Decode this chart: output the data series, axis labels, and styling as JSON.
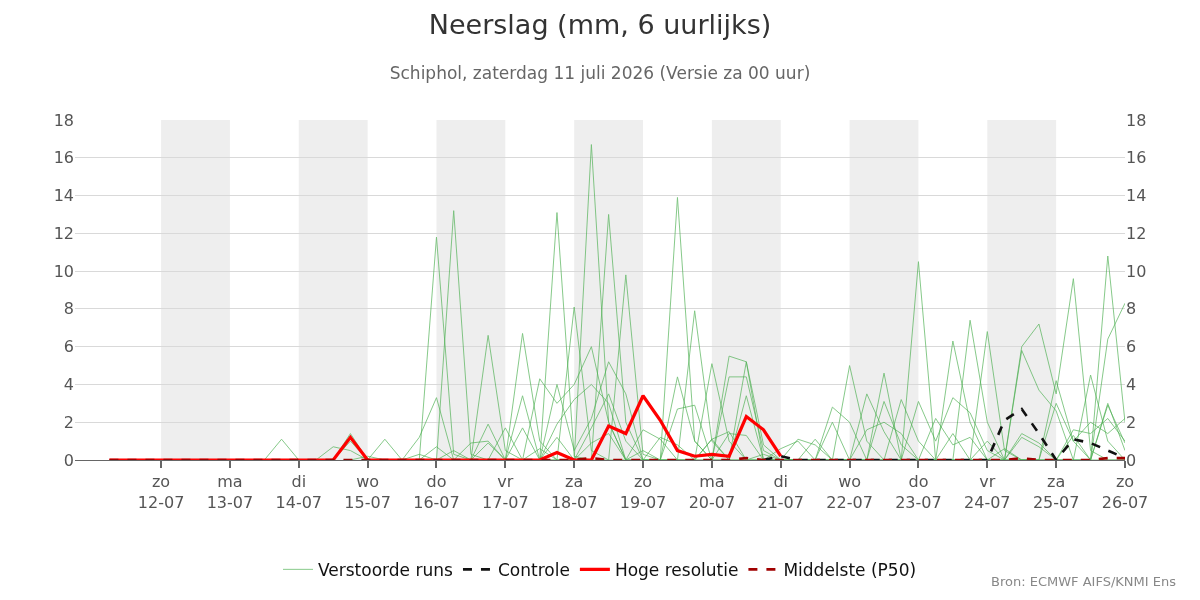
{
  "chart_data": {
    "type": "line",
    "title": "Neerslag (mm, 6 uurlijks)",
    "subtitle": "Schiphol, zaterdag 11 juli 2026 (Versie za 00 uur)",
    "annotations": [
      "Bron: ECMWF AIFS/KNMI Ens"
    ],
    "x": [
      "2026-07-11T06:00",
      "2026-07-11T12:00",
      "2026-07-11T18:00",
      "2026-07-12T00:00",
      "2026-07-12T06:00",
      "2026-07-12T12:00",
      "2026-07-12T18:00",
      "2026-07-13T00:00",
      "2026-07-13T06:00",
      "2026-07-13T12:00",
      "2026-07-13T18:00",
      "2026-07-14T00:00",
      "2026-07-14T06:00",
      "2026-07-14T12:00",
      "2026-07-14T18:00",
      "2026-07-15T00:00",
      "2026-07-15T06:00",
      "2026-07-15T12:00",
      "2026-07-15T18:00",
      "2026-07-16T00:00",
      "2026-07-16T06:00",
      "2026-07-16T12:00",
      "2026-07-16T18:00",
      "2026-07-17T00:00",
      "2026-07-17T06:00",
      "2026-07-17T12:00",
      "2026-07-17T18:00",
      "2026-07-18T00:00",
      "2026-07-18T06:00",
      "2026-07-18T12:00",
      "2026-07-18T18:00",
      "2026-07-19T00:00",
      "2026-07-19T06:00",
      "2026-07-19T12:00",
      "2026-07-19T18:00",
      "2026-07-20T00:00",
      "2026-07-20T06:00",
      "2026-07-20T12:00",
      "2026-07-20T18:00",
      "2026-07-21T00:00",
      "2026-07-21T06:00",
      "2026-07-21T12:00",
      "2026-07-21T18:00",
      "2026-07-22T00:00",
      "2026-07-22T06:00",
      "2026-07-22T12:00",
      "2026-07-22T18:00",
      "2026-07-23T00:00",
      "2026-07-23T06:00",
      "2026-07-23T12:00",
      "2026-07-23T18:00",
      "2026-07-24T00:00",
      "2026-07-24T06:00",
      "2026-07-24T12:00",
      "2026-07-24T18:00",
      "2026-07-25T00:00",
      "2026-07-25T06:00",
      "2026-07-25T12:00",
      "2026-07-25T18:00",
      "2026-07-26T00:00"
    ],
    "series": [
      {
        "name": "Verstoorde runs",
        "color": "#4caf50",
        "line_style": "solid",
        "values": [
          null,
          null,
          null,
          null,
          null,
          null,
          null,
          null,
          null,
          0,
          1.1,
          0,
          0,
          0,
          1.4,
          0,
          0,
          0,
          0,
          11.8,
          0.3,
          0,
          0,
          0,
          0,
          0,
          13.1,
          0.2,
          0,
          0,
          0,
          0,
          0,
          13.9,
          1.0,
          0,
          0,
          0,
          0,
          0,
          0,
          0,
          0,
          0,
          0,
          0,
          0,
          10.5,
          0,
          0,
          0,
          0,
          0,
          0,
          0,
          0,
          0,
          0,
          10.8,
          2.0
        ]
      },
      {
        "color": "#4caf50",
        "line_style": "solid",
        "values": [
          null,
          null,
          null,
          null,
          null,
          null,
          null,
          null,
          null,
          null,
          null,
          null,
          null,
          0,
          1.0,
          0,
          0,
          0,
          0,
          0,
          13.2,
          0.3,
          0,
          0,
          0,
          0,
          0,
          0,
          16.7,
          2.0,
          0,
          0,
          0,
          0,
          0,
          0,
          0,
          5.2,
          0,
          0,
          0,
          0,
          0,
          5.0,
          1.0,
          0,
          0,
          0,
          0,
          0,
          0,
          0,
          0,
          6.0,
          7.2,
          3.5,
          9.6,
          0.5,
          0,
          0
        ]
      },
      {
        "color": "#4caf50",
        "line_style": "solid",
        "values": [
          null,
          null,
          null,
          null,
          null,
          null,
          null,
          null,
          null,
          null,
          null,
          null,
          null,
          null,
          null,
          0,
          1.1,
          0,
          0,
          0,
          0,
          0,
          6.6,
          0.5,
          0,
          0,
          0,
          0,
          0,
          13.0,
          2.0,
          0,
          0,
          0,
          7.9,
          1.0,
          0,
          0,
          0,
          0,
          0,
          0,
          0,
          0,
          0,
          4.6,
          0,
          0,
          0,
          6.3,
          2.0,
          0,
          0,
          0,
          0,
          0,
          0,
          0,
          6.4,
          8.3
        ]
      },
      {
        "color": "#4caf50",
        "line_style": "solid",
        "values": [
          null,
          null,
          null,
          null,
          null,
          null,
          null,
          null,
          null,
          null,
          null,
          null,
          null,
          null,
          null,
          null,
          null,
          0,
          1.2,
          3.3,
          0,
          0,
          0,
          0,
          6.7,
          1.0,
          0,
          8.1,
          0.5,
          0,
          9.8,
          0.3,
          0,
          0,
          0,
          0,
          5.5,
          5.2,
          0.8,
          0,
          0,
          0,
          0,
          0,
          0,
          0,
          0,
          0,
          0,
          0,
          7.4,
          2.0,
          0,
          0,
          0,
          0,
          0,
          4.5,
          1.0,
          0
        ]
      },
      {
        "color": "#4caf50",
        "line_style": "solid",
        "values": [
          null,
          null,
          null,
          null,
          null,
          null,
          null,
          null,
          null,
          null,
          null,
          null,
          null,
          0,
          1.2,
          0,
          0,
          0,
          0,
          0,
          0,
          0,
          0,
          0,
          0,
          4.3,
          3.0,
          4.0,
          6.0,
          2.0,
          0,
          0,
          0,
          0,
          0,
          5.1,
          1.0,
          0,
          0,
          0,
          0,
          0,
          2.8,
          2.0,
          0,
          0,
          0,
          0,
          0,
          0,
          0,
          6.8,
          0.5,
          0,
          0,
          4.2,
          1.0,
          0,
          0,
          0
        ]
      },
      {
        "color": "#4caf50",
        "line_style": "solid",
        "values": [
          null,
          null,
          null,
          null,
          null,
          null,
          null,
          null,
          null,
          null,
          null,
          null,
          null,
          null,
          null,
          null,
          null,
          null,
          null,
          null,
          null,
          0,
          1.9,
          0,
          3.4,
          0,
          4.0,
          0.5,
          2.2,
          5.2,
          3.5,
          0,
          0,
          4.4,
          1.0,
          0,
          4.4,
          4.4,
          0.5,
          0,
          0,
          0,
          0,
          0,
          0,
          0,
          3.2,
          1.0,
          0,
          0,
          0,
          0,
          0,
          5.8,
          3.7,
          2.6,
          0,
          0,
          2.9,
          0.9
        ]
      },
      {
        "color": "#4caf50",
        "line_style": "solid",
        "values": [
          null,
          null,
          null,
          null,
          null,
          null,
          null,
          null,
          null,
          null,
          null,
          null,
          0,
          0.7,
          0.5,
          0,
          0,
          0,
          0,
          0.7,
          0,
          0.9,
          1.0,
          0,
          0,
          0,
          1.2,
          0,
          1.7,
          3.5,
          1.0,
          0,
          1.2,
          0.8,
          0,
          1.1,
          0,
          3.4,
          0,
          0,
          1.1,
          0.8,
          0,
          0,
          1.6,
          2.0,
          1.4,
          0,
          2.2,
          0.8,
          1.2,
          0,
          0.6,
          0,
          0,
          3.0,
          1.0,
          2.0,
          1.4,
          2.2
        ]
      },
      {
        "color": "#4caf50",
        "line_style": "solid",
        "values": [
          null,
          null,
          null,
          null,
          null,
          null,
          null,
          null,
          null,
          null,
          null,
          null,
          null,
          null,
          0,
          0.2,
          0,
          0,
          0,
          0,
          0.5,
          0,
          0,
          1.7,
          0,
          0.6,
          0,
          0,
          0.9,
          1.4,
          0,
          0.5,
          0,
          2.7,
          2.9,
          0,
          1.4,
          1.3,
          0,
          0.6,
          1.0,
          0,
          2.0,
          0,
          3.5,
          1.5,
          0,
          3.1,
          1.0,
          3.3,
          2.5,
          0.5,
          0,
          1.2,
          0.7,
          0,
          1.6,
          1.4,
          2.2,
          1.0
        ]
      },
      {
        "color": "#4caf50",
        "line_style": "solid",
        "values": [
          null,
          null,
          null,
          null,
          null,
          null,
          null,
          null,
          null,
          null,
          null,
          null,
          null,
          null,
          null,
          null,
          null,
          0,
          0.3,
          0,
          0,
          0,
          0.9,
          0,
          1.7,
          0,
          1.9,
          3.2,
          4.0,
          3.0,
          0,
          1.6,
          1.1,
          0,
          0,
          1.1,
          1.5,
          0,
          0.3,
          0,
          0,
          1.1,
          0,
          0,
          0,
          3.1,
          0.8,
          0,
          0,
          1.4,
          0,
          1.0,
          0,
          1.4,
          0.9,
          0,
          1.3,
          0,
          3.0,
          0.5
        ]
      },
      {
        "name": "Controle",
        "color": "#111111",
        "line_style": "dashed",
        "values": [
          null,
          null,
          null,
          null,
          null,
          null,
          null,
          null,
          null,
          null,
          null,
          null,
          null,
          null,
          null,
          null,
          null,
          null,
          null,
          null,
          null,
          null,
          null,
          null,
          null,
          null,
          null,
          null,
          null,
          null,
          null,
          null,
          null,
          null,
          null,
          null,
          null,
          null,
          0,
          0.2,
          0,
          0,
          0,
          0,
          0,
          0,
          0,
          0,
          0,
          0,
          0,
          0,
          2.1,
          2.7,
          1.4,
          0,
          1.1,
          0.9,
          0.5,
          0.1
        ]
      },
      {
        "name": "Hoge resolutie",
        "color": "#ff0000",
        "line_style": "solid",
        "values": [
          0,
          0,
          0,
          0,
          0,
          0,
          0,
          0,
          0,
          0,
          0,
          0,
          0,
          0,
          1.2,
          0,
          0,
          0,
          0,
          0,
          0,
          0,
          0,
          0,
          0,
          0,
          0.4,
          0,
          0,
          1.8,
          1.4,
          3.4,
          2.1,
          0.5,
          0.2,
          0.3,
          0.2,
          2.3,
          1.6,
          0.2,
          null,
          null,
          null,
          null,
          null,
          null,
          null,
          null,
          null,
          null,
          null,
          null,
          null,
          null,
          null,
          null,
          null,
          null,
          null,
          null
        ]
      },
      {
        "name": "Middelste (P50)",
        "color": "#a00000",
        "line_style": "dashed",
        "values": [
          0,
          0,
          0,
          0,
          0,
          0,
          0,
          0,
          0,
          0,
          0,
          0,
          0,
          0,
          0,
          0,
          0,
          0,
          0,
          0,
          0,
          0,
          0,
          0,
          0,
          0,
          0,
          0,
          0.1,
          0,
          0,
          0,
          0,
          0,
          0,
          0,
          0,
          0.1,
          0,
          0,
          0,
          0,
          0,
          0,
          0,
          0,
          0,
          0,
          0,
          0,
          0,
          0,
          0,
          0.1,
          0,
          0,
          0,
          0,
          0.1,
          0.1
        ]
      }
    ],
    "xlim": [
      "2026-07-10T18:00",
      "2026-07-26T00:00"
    ],
    "xticks": [
      {
        "value": "2026-07-12",
        "label": "zo\n12-07"
      },
      {
        "value": "2026-07-13",
        "label": "ma\n13-07"
      },
      {
        "value": "2026-07-14",
        "label": "di\n14-07"
      },
      {
        "value": "2026-07-15",
        "label": "wo\n15-07"
      },
      {
        "value": "2026-07-16",
        "label": "do\n16-07"
      },
      {
        "value": "2026-07-17",
        "label": "vr\n17-07"
      },
      {
        "value": "2026-07-18",
        "label": "za\n18-07"
      },
      {
        "value": "2026-07-19",
        "label": "zo\n19-07"
      },
      {
        "value": "2026-07-20",
        "label": "ma\n20-07"
      },
      {
        "value": "2026-07-21",
        "label": "di\n21-07"
      },
      {
        "value": "2026-07-22",
        "label": "wo\n22-07"
      },
      {
        "value": "2026-07-23",
        "label": "do\n23-07"
      },
      {
        "value": "2026-07-24",
        "label": "vr\n24-07"
      },
      {
        "value": "2026-07-25",
        "label": "za\n25-07"
      },
      {
        "value": "2026-07-26",
        "label": "zo\n26-07"
      }
    ],
    "ylim": [
      0,
      18
    ],
    "yticks": [
      0,
      2,
      4,
      6,
      8,
      10,
      12,
      14,
      16,
      18
    ],
    "y2lim": [
      0,
      18
    ],
    "y2ticks": [
      0,
      2,
      4,
      6,
      8,
      10,
      12,
      14,
      16,
      18
    ],
    "bands": [
      {
        "axis": "x",
        "from": "2026-07-12",
        "to": "2026-07-13",
        "color": "#eeeeee"
      },
      {
        "axis": "x",
        "from": "2026-07-14",
        "to": "2026-07-15",
        "color": "#eeeeee"
      },
      {
        "axis": "x",
        "from": "2026-07-16",
        "to": "2026-07-17",
        "color": "#eeeeee"
      },
      {
        "axis": "x",
        "from": "2026-07-18",
        "to": "2026-07-19",
        "color": "#eeeeee"
      },
      {
        "axis": "x",
        "from": "2026-07-20",
        "to": "2026-07-21",
        "color": "#eeeeee"
      },
      {
        "axis": "x",
        "from": "2026-07-22",
        "to": "2026-07-23",
        "color": "#eeeeee"
      },
      {
        "axis": "x",
        "from": "2026-07-24",
        "to": "2026-07-25",
        "color": "#eeeeee"
      }
    ],
    "grid": "y",
    "legend": "bottom",
    "marker": "none"
  }
}
